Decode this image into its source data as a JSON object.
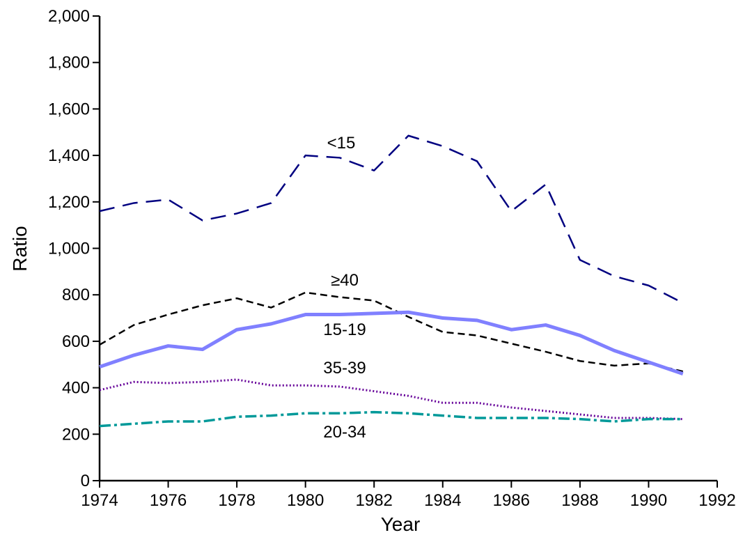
{
  "chart_data": {
    "type": "line",
    "x_label": "Year",
    "y_label": "Ratio",
    "x": [
      1974,
      1975,
      1976,
      1977,
      1978,
      1979,
      1980,
      1981,
      1982,
      1983,
      1984,
      1985,
      1986,
      1987,
      1988,
      1989,
      1990,
      1991
    ],
    "xlim": [
      1974,
      1992
    ],
    "xticks": [
      1974,
      1976,
      1978,
      1980,
      1982,
      1984,
      1986,
      1988,
      1990,
      1992
    ],
    "ylim": [
      0,
      2000
    ],
    "yticks": [
      0,
      {
        "value": 200,
        "label": "200"
      },
      400,
      600,
      800,
      {
        "value": 1000,
        "label": "1,000"
      },
      {
        "value": 1200,
        "label": "1,200"
      },
      {
        "value": 1400,
        "label": "1,400"
      },
      {
        "value": 1600,
        "label": "1,600"
      },
      {
        "value": 1800,
        "label": "1,800"
      },
      {
        "value": 2000,
        "label": "2,000"
      }
    ],
    "series": [
      {
        "name": "<15",
        "color": "#000080",
        "dash": "22 12",
        "width": 2.5,
        "values": [
          1160,
          1195,
          1210,
          1120,
          1150,
          1195,
          1400,
          1390,
          1335,
          1485,
          1440,
          1375,
          1160,
          1275,
          950,
          880,
          840,
          765
        ]
      },
      {
        "name": "≥40",
        "color": "#000000",
        "dash": "10 6",
        "width": 2.5,
        "values": [
          585,
          670,
          715,
          755,
          785,
          745,
          810,
          790,
          775,
          705,
          640,
          625,
          590,
          555,
          515,
          495,
          505,
          470
        ]
      },
      {
        "name": "15-19",
        "color": "#8080ff",
        "dash": "none",
        "width": 5,
        "values": [
          490,
          540,
          580,
          565,
          650,
          675,
          715,
          715,
          720,
          725,
          700,
          690,
          650,
          670,
          625,
          560,
          510,
          460
        ]
      },
      {
        "name": "35-39",
        "color": "#660099",
        "dash": "2 3",
        "width": 3,
        "values": [
          390,
          425,
          420,
          425,
          435,
          410,
          410,
          405,
          385,
          365,
          335,
          335,
          315,
          300,
          285,
          270,
          270,
          265
        ]
      },
      {
        "name": "20-34",
        "color": "#009999",
        "dash": "16 5 4 5",
        "width": 3.5,
        "values": [
          235,
          245,
          255,
          255,
          275,
          280,
          290,
          290,
          295,
          290,
          280,
          270,
          270,
          270,
          265,
          255,
          265,
          265
        ]
      }
    ]
  }
}
